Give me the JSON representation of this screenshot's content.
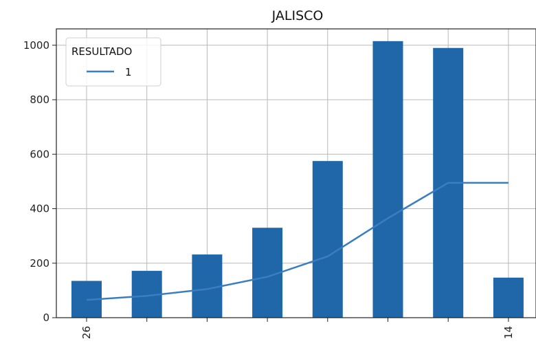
{
  "chart_data": {
    "type": "bar",
    "title": "JALISCO",
    "xlabel": "",
    "ylabel": "",
    "categories": [
      "26",
      "",
      "",
      "",
      "",
      "",
      "",
      "14"
    ],
    "values": [
      135,
      172,
      232,
      330,
      575,
      1015,
      990,
      147
    ],
    "line_series": {
      "name": "1",
      "values": [
        65,
        80,
        105,
        150,
        225,
        365,
        495,
        495
      ]
    },
    "ylim": [
      0,
      1060
    ],
    "yticks": [
      0,
      200,
      400,
      600,
      800,
      1000
    ],
    "legend": {
      "title": "RESULTADO",
      "placement": "top-left"
    },
    "grid": true,
    "bar_color": "#1f67a8",
    "line_color": "#3a7dc0"
  }
}
